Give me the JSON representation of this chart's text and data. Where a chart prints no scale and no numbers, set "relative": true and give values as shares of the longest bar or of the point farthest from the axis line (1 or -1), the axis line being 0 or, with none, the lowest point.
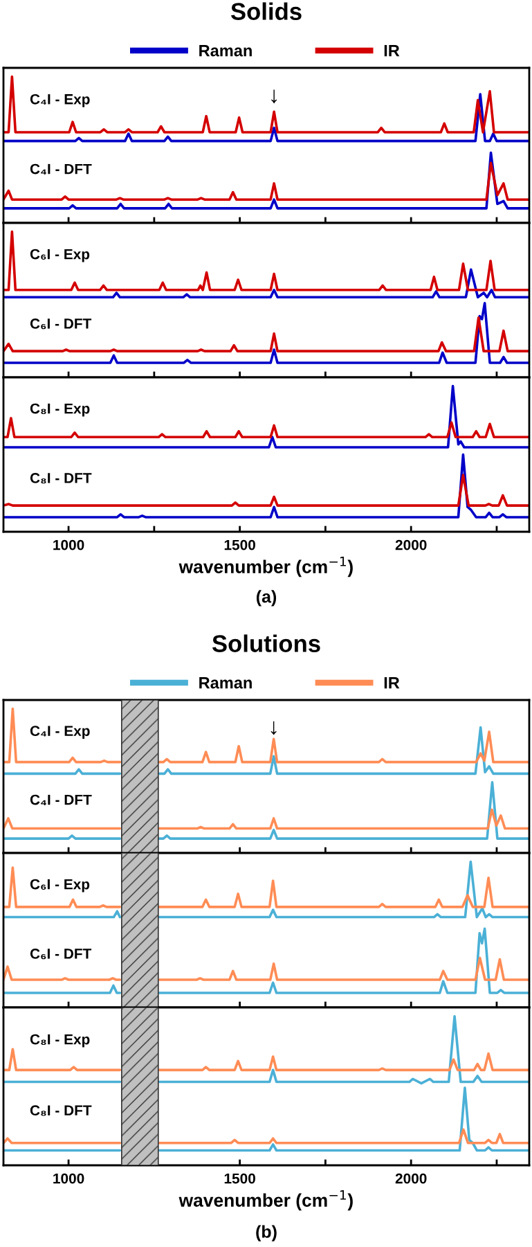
{
  "chart_data": [
    {
      "type": "line",
      "relative": true,
      "title": "Solids",
      "legend": "top",
      "tick_labels": false,
      "xlim": [
        810,
        2345
      ],
      "xticks": [
        1000,
        {
          "value": 1250,
          "label": null
        },
        1500,
        {
          "value": 1750,
          "label": null
        },
        2000,
        {
          "value": 2250,
          "label": null
        }
      ],
      "annotations": [
        "C₄I - Exp",
        "C₄I - DFT",
        {
          "text": "↓",
          "x": 1600,
          "y": 0.79
        }
      ],
      "series": [
        {
          "name": "Raman",
          "color": "#0000c8",
          "x": [
            810,
            1020,
            1030,
            1040,
            1165,
            1175,
            1185,
            1280,
            1290,
            1300,
            1590,
            1600,
            1610,
            2188,
            2202,
            2216,
            2230,
            2240,
            2250,
            2345
          ],
          "values": [
            0.56,
            0.56,
            0.58,
            0.56,
            0.56,
            0.61,
            0.56,
            0.56,
            0.59,
            0.56,
            0.56,
            0.65,
            0.56,
            0.56,
            0.88,
            0.56,
            0.56,
            0.61,
            0.56,
            0.56
          ]
        },
        {
          "name": "IR",
          "color": "#d40000",
          "x": [
            810,
            825,
            835,
            845,
            1002,
            1012,
            1022,
            1093,
            1103,
            1113,
            1165,
            1175,
            1185,
            1260,
            1270,
            1280,
            1392,
            1402,
            1412,
            1488,
            1498,
            1508,
            1590,
            1600,
            1610,
            1903,
            1913,
            1923,
            2087,
            2097,
            2107,
            2183,
            2195,
            2210,
            2230,
            2242,
            2345
          ],
          "values": [
            0.62,
            0.62,
            1.0,
            0.62,
            0.62,
            0.69,
            0.62,
            0.62,
            0.64,
            0.62,
            0.62,
            0.64,
            0.62,
            0.62,
            0.66,
            0.62,
            0.62,
            0.73,
            0.62,
            0.62,
            0.72,
            0.62,
            0.62,
            0.76,
            0.62,
            0.62,
            0.65,
            0.62,
            0.62,
            0.68,
            0.62,
            0.62,
            0.84,
            0.62,
            0.9,
            0.62,
            0.62
          ]
        },
        {
          "color": "#0000c8",
          "x": [
            810,
            1002,
            1012,
            1022,
            1142,
            1152,
            1162,
            1282,
            1292,
            1302,
            1590,
            1600,
            1610,
            2220,
            2233,
            2252,
            2270,
            2282,
            2345
          ],
          "values": [
            0.1,
            0.1,
            0.12,
            0.1,
            0.1,
            0.13,
            0.1,
            0.1,
            0.13,
            0.1,
            0.1,
            0.16,
            0.1,
            0.1,
            0.48,
            0.13,
            0.15,
            0.1,
            0.1
          ]
        },
        {
          "color": "#d40000",
          "x": [
            810,
            825,
            835,
            980,
            990,
            1000,
            1140,
            1150,
            1160,
            1280,
            1290,
            1300,
            1377,
            1387,
            1397,
            1470,
            1480,
            1490,
            1590,
            1600,
            1610,
            2220,
            2233,
            2252,
            2270,
            2282,
            2345
          ],
          "values": [
            0.16,
            0.22,
            0.16,
            0.16,
            0.18,
            0.16,
            0.16,
            0.17,
            0.16,
            0.16,
            0.17,
            0.16,
            0.16,
            0.17,
            0.16,
            0.16,
            0.21,
            0.16,
            0.16,
            0.27,
            0.16,
            0.16,
            0.41,
            0.19,
            0.27,
            0.16,
            0.16
          ]
        }
      ]
    },
    {
      "type": "line",
      "relative": true,
      "tick_labels": false,
      "xlim": [
        810,
        2345
      ],
      "xticks": [
        1000,
        {
          "value": 1250,
          "label": null
        },
        1500,
        {
          "value": 1750,
          "label": null
        },
        2000,
        {
          "value": 2250,
          "label": null
        }
      ],
      "annotations": [
        "C₆I - Exp",
        "C₆I - DFT"
      ],
      "series": [
        {
          "color": "#0000c8",
          "x": [
            810,
            1130,
            1140,
            1150,
            1335,
            1345,
            1355,
            1590,
            1600,
            1610,
            2063,
            2073,
            2083,
            2160,
            2175,
            2195,
            2212,
            2222,
            2235,
            2245,
            2345
          ],
          "values": [
            0.55,
            0.55,
            0.58,
            0.55,
            0.55,
            0.57,
            0.55,
            0.55,
            0.6,
            0.55,
            0.55,
            0.59,
            0.55,
            0.55,
            0.74,
            0.55,
            0.58,
            0.55,
            0.6,
            0.55,
            0.55
          ]
        },
        {
          "color": "#d40000",
          "x": [
            810,
            825,
            835,
            845,
            1008,
            1018,
            1028,
            1092,
            1102,
            1112,
            1265,
            1275,
            1285,
            1378,
            1385,
            1392,
            1403,
            1413,
            1485,
            1495,
            1505,
            1590,
            1600,
            1610,
            1907,
            1917,
            1927,
            2057,
            2067,
            2077,
            2140,
            2152,
            2166,
            2220,
            2232,
            2244,
            2345
          ],
          "values": [
            0.6,
            0.6,
            1.0,
            0.6,
            0.6,
            0.65,
            0.6,
            0.6,
            0.63,
            0.6,
            0.6,
            0.65,
            0.6,
            0.6,
            0.63,
            0.6,
            0.72,
            0.6,
            0.6,
            0.67,
            0.6,
            0.6,
            0.71,
            0.6,
            0.6,
            0.63,
            0.6,
            0.6,
            0.69,
            0.6,
            0.6,
            0.78,
            0.6,
            0.6,
            0.8,
            0.6,
            0.6
          ]
        },
        {
          "color": "#0000c8",
          "x": [
            810,
            1122,
            1132,
            1142,
            1337,
            1347,
            1357,
            1590,
            1600,
            1610,
            2082,
            2092,
            2104,
            2188,
            2200,
            2207,
            2215,
            2230,
            2260,
            2270,
            2280,
            2345
          ],
          "values": [
            0.1,
            0.1,
            0.15,
            0.1,
            0.1,
            0.12,
            0.1,
            0.1,
            0.19,
            0.1,
            0.1,
            0.17,
            0.1,
            0.1,
            0.42,
            0.4,
            0.51,
            0.1,
            0.1,
            0.14,
            0.1,
            0.1
          ]
        },
        {
          "color": "#d40000",
          "x": [
            810,
            825,
            837,
            983,
            993,
            1003,
            1122,
            1132,
            1142,
            1377,
            1387,
            1397,
            1473,
            1483,
            1493,
            1590,
            1600,
            1610,
            2080,
            2090,
            2102,
            2184,
            2197,
            2212,
            2258,
            2270,
            2282,
            2345
          ],
          "values": [
            0.18,
            0.23,
            0.18,
            0.18,
            0.19,
            0.18,
            0.18,
            0.19,
            0.18,
            0.18,
            0.19,
            0.18,
            0.18,
            0.22,
            0.18,
            0.18,
            0.3,
            0.18,
            0.18,
            0.24,
            0.18,
            0.18,
            0.41,
            0.18,
            0.18,
            0.32,
            0.18,
            0.18
          ]
        }
      ]
    },
    {
      "type": "line",
      "relative": true,
      "tick_labels": "x",
      "xlabel": "wavenumber (cm$^{−1}$)",
      "xlim": [
        810,
        2345
      ],
      "xticks": [
        1000,
        {
          "value": 1250,
          "label": null
        },
        1500,
        {
          "value": 1750,
          "label": null
        },
        2000,
        {
          "value": 2250,
          "label": null
        }
      ],
      "annotations": [
        "C₈I - Exp",
        "C₈I - DFT",
        "(a)"
      ],
      "series": [
        {
          "color": "#0000c8",
          "x": [
            810,
            1585,
            1595,
            1605,
            2108,
            2122,
            2138,
            2145,
            2155,
            2345
          ],
          "values": [
            0.58,
            0.58,
            0.65,
            0.58,
            0.58,
            1.0,
            0.6,
            0.62,
            0.58,
            0.58
          ]
        },
        {
          "color": "#d40000",
          "x": [
            810,
            822,
            832,
            842,
            1008,
            1018,
            1028,
            1263,
            1273,
            1283,
            1393,
            1403,
            1413,
            1487,
            1497,
            1507,
            1590,
            1600,
            1610,
            2042,
            2052,
            2062,
            2106,
            2118,
            2130,
            2180,
            2190,
            2200,
            2218,
            2230,
            2242,
            2345
          ],
          "values": [
            0.65,
            0.65,
            0.78,
            0.65,
            0.65,
            0.68,
            0.65,
            0.65,
            0.67,
            0.65,
            0.65,
            0.69,
            0.65,
            0.65,
            0.69,
            0.65,
            0.65,
            0.73,
            0.65,
            0.65,
            0.67,
            0.65,
            0.65,
            0.75,
            0.65,
            0.65,
            0.69,
            0.65,
            0.65,
            0.74,
            0.65,
            0.65
          ]
        },
        {
          "color": "#0000c8",
          "x": [
            810,
            1142,
            1152,
            1162,
            1205,
            1215,
            1225,
            1590,
            1600,
            1610,
            2138,
            2152,
            2165,
            2175,
            2190,
            2218,
            2228,
            2238,
            2258,
            2268,
            2278,
            2345
          ],
          "values": [
            0.1,
            0.1,
            0.12,
            0.1,
            0.1,
            0.11,
            0.1,
            0.1,
            0.17,
            0.1,
            0.1,
            0.53,
            0.17,
            0.15,
            0.1,
            0.1,
            0.13,
            0.1,
            0.1,
            0.12,
            0.1,
            0.1
          ]
        },
        {
          "color": "#d40000",
          "x": [
            810,
            825,
            837,
            1477,
            1487,
            1497,
            1590,
            1600,
            1610,
            2138,
            2152,
            2168,
            2217,
            2227,
            2237,
            2256,
            2268,
            2280,
            2345
          ],
          "values": [
            0.18,
            0.19,
            0.18,
            0.18,
            0.2,
            0.18,
            0.18,
            0.24,
            0.18,
            0.18,
            0.39,
            0.18,
            0.18,
            0.19,
            0.18,
            0.18,
            0.25,
            0.18,
            0.18
          ]
        }
      ]
    },
    {
      "type": "line",
      "relative": true,
      "title": "Solutions",
      "legend": "top",
      "tick_labels": false,
      "xlim": [
        810,
        2345
      ],
      "xticks": [
        1000,
        {
          "value": 1250,
          "label": null
        },
        1500,
        {
          "value": 1750,
          "label": null
        },
        2000,
        {
          "value": 2250,
          "label": null
        }
      ],
      "bands": [
        {
          "axis": "x",
          "from": 1155,
          "to": 1262,
          "color": "#c0c0c0"
        }
      ],
      "annotations": [
        "C₄I - Exp",
        "C₄I - DFT",
        {
          "text": "↓",
          "x": 1599,
          "y": 0.79
        }
      ],
      "series": [
        {
          "name": "Raman",
          "color": "#4bb0d6",
          "x": [
            810,
            1020,
            1030,
            1040,
            1150,
            1200,
            1265,
            1280,
            1290,
            1300,
            1589,
            1599,
            1609,
            2188,
            2203,
            2216,
            2228,
            2240,
            2345
          ],
          "values": [
            0.55,
            0.55,
            0.58,
            0.55,
            0.55,
            null,
            0.55,
            0.55,
            0.58,
            0.55,
            0.55,
            0.67,
            0.55,
            0.55,
            0.87,
            0.56,
            0.6,
            0.55,
            0.55
          ]
        },
        {
          "name": "IR",
          "color": "#ff8c55",
          "x": [
            810,
            827,
            837,
            847,
            1002,
            1012,
            1022,
            1094,
            1104,
            1114,
            1150,
            1200,
            1265,
            1277,
            1287,
            1297,
            1391,
            1401,
            1411,
            1487,
            1497,
            1507,
            1589,
            1599,
            1609,
            1906,
            1916,
            1926,
            2190,
            2203,
            2214,
            2228,
            2240,
            2345
          ],
          "values": [
            0.63,
            0.63,
            1.0,
            0.63,
            0.63,
            0.66,
            0.63,
            0.63,
            0.64,
            0.63,
            0.63,
            null,
            0.63,
            0.63,
            0.65,
            0.63,
            0.63,
            0.7,
            0.63,
            0.63,
            0.74,
            0.63,
            0.63,
            0.79,
            0.63,
            0.63,
            0.65,
            0.63,
            0.63,
            0.69,
            0.64,
            0.84,
            0.63,
            0.63
          ]
        },
        {
          "color": "#4bb0d6",
          "x": [
            810,
            1000,
            1010,
            1020,
            1150,
            1200,
            1265,
            1277,
            1287,
            1297,
            1589,
            1599,
            1609,
            2222,
            2237,
            2252,
            2345
          ],
          "values": [
            0.1,
            0.1,
            0.12,
            0.1,
            0.1,
            null,
            0.1,
            0.1,
            0.12,
            0.1,
            0.1,
            0.16,
            0.1,
            0.1,
            0.49,
            0.1,
            0.1
          ]
        },
        {
          "color": "#ff8c55",
          "x": [
            810,
            824,
            836,
            1150,
            1200,
            1265,
            1376,
            1386,
            1396,
            1470,
            1480,
            1490,
            1589,
            1599,
            1609,
            2224,
            2236,
            2249,
            2262,
            2274,
            2345
          ],
          "values": [
            0.17,
            0.24,
            0.17,
            0.17,
            null,
            0.17,
            0.17,
            0.18,
            0.17,
            0.17,
            0.2,
            0.17,
            0.17,
            0.24,
            0.17,
            0.17,
            0.3,
            0.19,
            0.26,
            0.17,
            0.17
          ]
        }
      ]
    },
    {
      "type": "line",
      "relative": true,
      "tick_labels": false,
      "xlim": [
        810,
        2345
      ],
      "xticks": [
        1000,
        {
          "value": 1250,
          "label": null
        },
        1500,
        {
          "value": 1750,
          "label": null
        },
        2000,
        {
          "value": 2250,
          "label": null
        }
      ],
      "bands": [
        {
          "axis": "x",
          "from": 1155,
          "to": 1262,
          "color": "#c0c0c0"
        }
      ],
      "annotations": [
        "C₆I - Exp",
        "C₆I - DFT"
      ],
      "series": [
        {
          "color": "#4bb0d6",
          "x": [
            810,
            1132,
            1142,
            1150,
            1200,
            1265,
            1587,
            1597,
            1607,
            2067,
            2077,
            2087,
            2158,
            2174,
            2192,
            2208,
            2218,
            2228,
            2238,
            2345
          ],
          "values": [
            0.62,
            0.62,
            0.66,
            0.62,
            null,
            0.62,
            0.62,
            0.67,
            0.62,
            0.62,
            0.64,
            0.62,
            0.62,
            1.0,
            0.62,
            0.68,
            0.62,
            0.64,
            0.62,
            0.62
          ]
        },
        {
          "color": "#ff8c55",
          "x": [
            810,
            827,
            837,
            847,
            1003,
            1013,
            1023,
            1091,
            1101,
            1111,
            1150,
            1200,
            1265,
            1391,
            1401,
            1411,
            1485,
            1495,
            1505,
            1587,
            1597,
            1607,
            1906,
            1916,
            1926,
            2071,
            2081,
            2091,
            2150,
            2165,
            2180,
            2214,
            2226,
            2238,
            2345
          ],
          "values": [
            0.69,
            0.69,
            0.96,
            0.69,
            0.69,
            0.74,
            0.69,
            0.69,
            0.7,
            0.69,
            0.69,
            null,
            0.69,
            0.69,
            0.74,
            0.69,
            0.69,
            0.78,
            0.69,
            0.69,
            0.87,
            0.69,
            0.69,
            0.71,
            0.69,
            0.69,
            0.74,
            0.69,
            0.69,
            0.77,
            0.69,
            0.69,
            0.89,
            0.69,
            0.69
          ]
        },
        {
          "color": "#4bb0d6",
          "x": [
            810,
            1121,
            1131,
            1141,
            1150,
            1200,
            1265,
            1587,
            1597,
            1607,
            2084,
            2094,
            2106,
            2188,
            2200,
            2207,
            2215,
            2230,
            2252,
            2262,
            2272,
            2345
          ],
          "values": [
            0.1,
            0.1,
            0.15,
            0.1,
            0.1,
            null,
            0.1,
            0.1,
            0.17,
            0.1,
            0.1,
            0.18,
            0.1,
            0.1,
            0.51,
            0.44,
            0.54,
            0.1,
            0.1,
            0.12,
            0.1,
            0.1
          ]
        },
        {
          "color": "#ff8c55",
          "x": [
            810,
            822,
            834,
            980,
            990,
            1000,
            1119,
            1129,
            1139,
            1150,
            1200,
            1265,
            1374,
            1384,
            1394,
            1470,
            1480,
            1490,
            1589,
            1599,
            1609,
            2084,
            2094,
            2106,
            2188,
            2201,
            2216,
            2247,
            2259,
            2271,
            2345
          ],
          "values": [
            0.19,
            0.28,
            0.19,
            0.19,
            0.2,
            0.19,
            0.19,
            0.2,
            0.19,
            0.19,
            null,
            0.19,
            0.19,
            0.2,
            0.19,
            0.19,
            0.25,
            0.19,
            0.19,
            0.3,
            0.19,
            0.19,
            0.25,
            0.19,
            0.19,
            0.34,
            0.19,
            0.19,
            0.33,
            0.19,
            0.19
          ]
        }
      ]
    },
    {
      "type": "line",
      "relative": true,
      "tick_labels": "x",
      "xlabel": "wavenumber (cm$^{−1}$)",
      "xlim": [
        810,
        2345
      ],
      "xticks": [
        1000,
        {
          "value": 1250,
          "label": null
        },
        1500,
        {
          "value": 1750,
          "label": null
        },
        2000,
        {
          "value": 2250,
          "label": null
        }
      ],
      "bands": [
        {
          "axis": "x",
          "from": 1155,
          "to": 1262,
          "color": "#c0c0c0"
        }
      ],
      "annotations": [
        "C₈I - Exp",
        "C₈I - DFT",
        "(b)"
      ],
      "series": [
        {
          "color": "#4bb0d6",
          "x": [
            810,
            1150,
            1200,
            1265,
            1587,
            1597,
            1607,
            1995,
            2005,
            2030,
            2055,
            2065,
            2110,
            2127,
            2145,
            2182,
            2194,
            2206,
            2345
          ],
          "values": [
            0.56,
            0.56,
            null,
            0.56,
            0.56,
            0.64,
            0.56,
            0.56,
            0.58,
            0.55,
            0.58,
            0.56,
            0.56,
            1.0,
            0.56,
            0.56,
            0.6,
            0.56,
            0.56
          ]
        },
        {
          "color": "#ff8c55",
          "x": [
            810,
            827,
            837,
            847,
            1005,
            1015,
            1025,
            1150,
            1200,
            1265,
            1391,
            1401,
            1411,
            1485,
            1495,
            1505,
            1587,
            1597,
            1607,
            1906,
            1916,
            1926,
            2112,
            2124,
            2136,
            2184,
            2194,
            2204,
            2214,
            2226,
            2238,
            2345
          ],
          "values": [
            0.64,
            0.64,
            0.78,
            0.64,
            0.64,
            0.66,
            0.64,
            0.64,
            null,
            0.64,
            0.64,
            0.66,
            0.64,
            0.64,
            0.7,
            0.64,
            0.64,
            0.73,
            0.64,
            0.64,
            0.65,
            0.64,
            0.64,
            0.71,
            0.64,
            0.64,
            0.68,
            0.64,
            0.64,
            0.75,
            0.64,
            0.64
          ]
        },
        {
          "color": "#4bb0d6",
          "x": [
            810,
            1150,
            1200,
            1265,
            1587,
            1597,
            1607,
            2142,
            2157,
            2170,
            2180,
            2192,
            2216,
            2226,
            2236,
            2345
          ],
          "values": [
            0.1,
            0.1,
            null,
            0.1,
            0.1,
            0.14,
            0.1,
            0.1,
            0.52,
            0.17,
            0.15,
            0.1,
            0.1,
            0.12,
            0.1,
            0.1
          ]
        },
        {
          "color": "#ff8c55",
          "x": [
            810,
            822,
            834,
            1150,
            1200,
            1265,
            1475,
            1485,
            1495,
            1587,
            1597,
            1607,
            2140,
            2153,
            2166,
            2216,
            2226,
            2236,
            2249,
            2259,
            2269,
            2345
          ],
          "values": [
            0.15,
            0.18,
            0.15,
            0.15,
            null,
            0.15,
            0.15,
            0.17,
            0.15,
            0.15,
            0.18,
            0.15,
            0.15,
            0.24,
            0.15,
            0.15,
            0.17,
            0.15,
            0.15,
            0.21,
            0.15,
            0.15
          ]
        }
      ]
    }
  ]
}
